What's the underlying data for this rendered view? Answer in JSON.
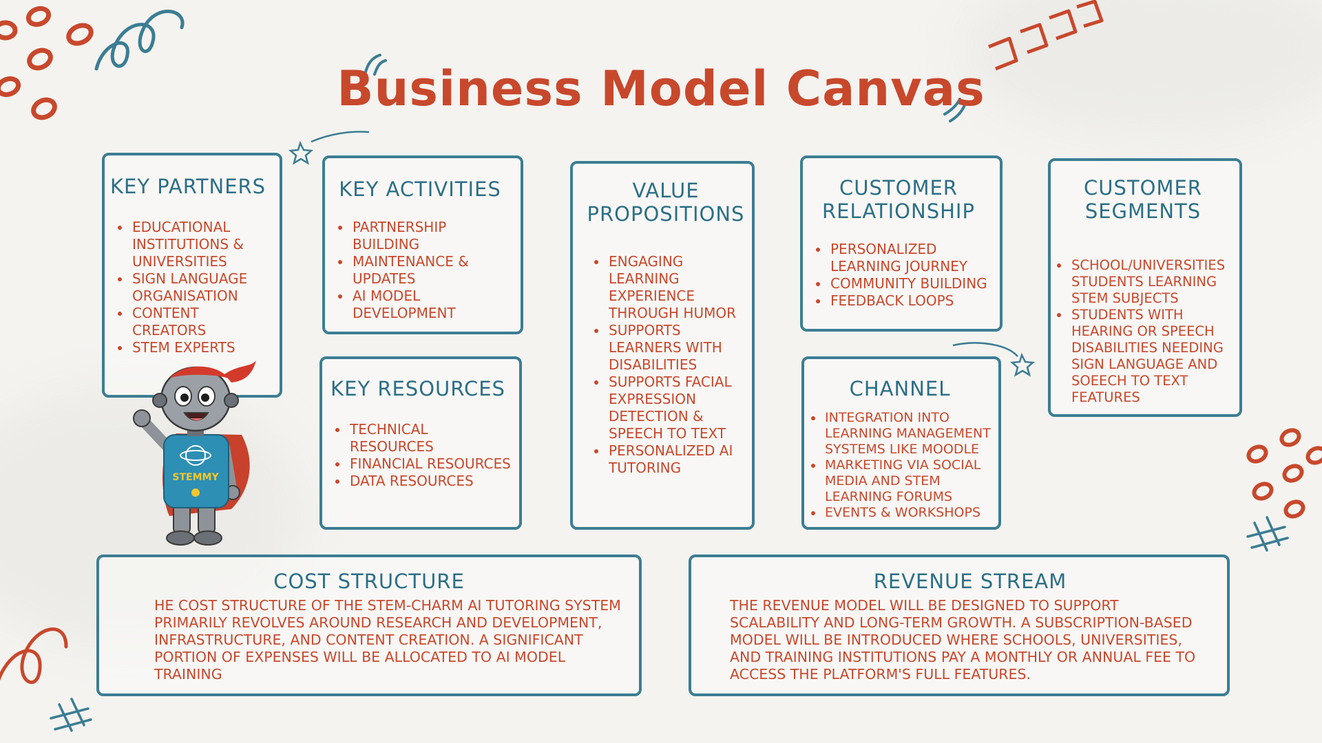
{
  "title": "Business Model Canvas",
  "colors": {
    "heading": "#2c6f86",
    "text": "#c8482c",
    "border": "#3b7d93",
    "background": "#f4f3f0"
  },
  "mascot": {
    "shirt_label": "STEMMY"
  },
  "boxes": {
    "key_partners": {
      "heading": "KEY PARTNERS",
      "items": [
        "EDUCATIONAL INSTITUTIONS & UNIVERSITIES",
        "SIGN LANGUAGE ORGANISATION",
        "CONTENT CREATORS",
        "STEM EXPERTS"
      ]
    },
    "key_activities": {
      "heading": "KEY ACTIVITIES",
      "items": [
        "PARTNERSHIP BUILDING",
        "MAINTENANCE & UPDATES",
        "AI MODEL DEVELOPMENT"
      ]
    },
    "key_resources": {
      "heading": "KEY RESOURCES",
      "items": [
        "TECHNICAL RESOURCES",
        "FINANCIAL RESOURCES",
        "DATA RESOURCES"
      ]
    },
    "value_propositions": {
      "heading": "VALUE PROPOSITIONS",
      "items": [
        "ENGAGING LEARNING EXPERIENCE THROUGH HUMOR",
        "SUPPORTS LEARNERS WITH DISABILITIES",
        "SUPPORTS FACIAL EXPRESSION DETECTION & SPEECH TO TEXT",
        "PERSONALIZED AI TUTORING"
      ]
    },
    "customer_relationship": {
      "heading": "CUSTOMER RELATIONSHIP",
      "items": [
        "PERSONALIZED LEARNING JOURNEY",
        "COMMUNITY BUILDING",
        "FEEDBACK LOOPS"
      ]
    },
    "channel": {
      "heading": "CHANNEL",
      "items": [
        "INTEGRATION INTO LEARNING MANAGEMENT SYSTEMS LIKE MOODLE",
        "MARKETING VIA SOCIAL MEDIA AND STEM LEARNING FORUMS",
        "EVENTS & WORKSHOPS"
      ]
    },
    "customer_segments": {
      "heading": "CUSTOMER SEGMENTS",
      "items": [
        "SCHOOL/UNIVERSITIES STUDENTS LEARNING STEM SUBJECTS",
        "STUDENTS WITH HEARING OR SPEECH DISABILITIES NEEDING SIGN LANGUAGE AND SOEECH TO TEXT FEATURES"
      ]
    },
    "cost_structure": {
      "heading": "COST STRUCTURE",
      "text": "HE COST STRUCTURE OF THE STEM-CHARM AI TUTORING SYSTEM PRIMARILY REVOLVES AROUND RESEARCH AND DEVELOPMENT, INFRASTRUCTURE, AND CONTENT CREATION. A SIGNIFICANT PORTION OF EXPENSES WILL BE ALLOCATED TO AI MODEL TRAINING"
    },
    "revenue_stream": {
      "heading": "REVENUE STREAM",
      "text": "THE REVENUE MODEL WILL BE DESIGNED TO SUPPORT SCALABILITY AND LONG-TERM GROWTH. A SUBSCRIPTION-BASED MODEL WILL BE INTRODUCED WHERE SCHOOLS, UNIVERSITIES, AND TRAINING INSTITUTIONS PAY A MONTHLY OR ANNUAL FEE TO ACCESS THE PLATFORM'S FULL FEATURES."
    }
  }
}
